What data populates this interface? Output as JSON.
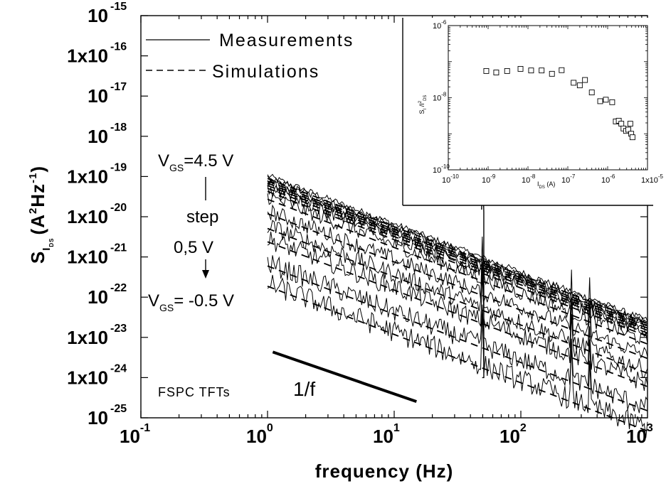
{
  "chart_data": [
    {
      "type": "line",
      "title": "",
      "xlabel": "frequency (Hz)",
      "ylabel": {
        "main": "S",
        "sub": "I",
        "subsub": "DS",
        "unit_open": "(A",
        "unit_sup1": "2",
        "unit_hz": "Hz",
        "unit_sup2": "-1",
        "unit_close": ")"
      },
      "x_scale": "log",
      "y_scale": "log",
      "xlim": [
        0.1,
        1000
      ],
      "ylim": [
        1e-25,
        1e-15
      ],
      "x_ticks": [
        {
          "value": 0.1,
          "base": "10",
          "exp": "-1"
        },
        {
          "value": 1,
          "base": "10",
          "exp": "0"
        },
        {
          "value": 10,
          "base": "10",
          "exp": "1"
        },
        {
          "value": 100,
          "base": "10",
          "exp": "2"
        },
        {
          "value": 1000,
          "base": "10",
          "exp": "3"
        }
      ],
      "y_ticks": [
        {
          "value": 1e-15,
          "base": "10",
          "exp": "-15"
        },
        {
          "value": 1e-16,
          "base": "1x10",
          "exp": "-16"
        },
        {
          "value": 1e-17,
          "base": "10",
          "exp": "-17"
        },
        {
          "value": 1e-18,
          "base": "10",
          "exp": "-18"
        },
        {
          "value": 1e-19,
          "base": "1x10",
          "exp": "-19"
        },
        {
          "value": 1e-20,
          "base": "1x10",
          "exp": "-20"
        },
        {
          "value": 1e-21,
          "base": "1x10",
          "exp": "-21"
        },
        {
          "value": 1e-22,
          "base": "10",
          "exp": "-22"
        },
        {
          "value": 1e-23,
          "base": "1x10",
          "exp": "-23"
        },
        {
          "value": 1e-24,
          "base": "1x10",
          "exp": "-24"
        },
        {
          "value": 1e-25,
          "base": "10",
          "exp": "-25"
        }
      ],
      "legend": {
        "placement": "top-left",
        "entries": [
          {
            "label": "Measurements",
            "style": "solid"
          },
          {
            "label": "Simulations",
            "style": "dashed"
          }
        ]
      },
      "annotations": {
        "vgs_top": {
          "v": "V",
          "sub": "GS",
          "val": "=4.5 V"
        },
        "step_label": "step",
        "step_value": "0,5 V",
        "vgs_bottom": {
          "v": "V",
          "sub": "GS",
          "val": "= -0.5 V"
        },
        "device_label": "FSPC TFTs",
        "slope_label": "1/f"
      },
      "slope_line": {
        "x": [
          1.1,
          15
        ],
        "y": [
          8.5e-25,
          7e-25
        ],
        "note_value_at_end": 6.8e-25
      },
      "curve_family": {
        "x_range": [
          1,
          1000
        ],
        "amplitude_at_1Hz": [
          1.05e-19,
          9e-20,
          8e-20,
          7e-20,
          6e-20,
          5e-20,
          3.2e-20,
          1.4e-20,
          6e-21,
          2.8e-21,
          7e-22,
          2.2e-22
        ],
        "slope_exponent": -1.2,
        "spikes_hz": [
          50,
          250,
          350
        ]
      },
      "grid": false
    },
    {
      "type": "scatter",
      "title": "",
      "xlabel": {
        "main": "I",
        "sub": "DS",
        "rest": " (A)"
      },
      "ylabel": {
        "main": "S",
        "sub": "I",
        "mid": " /I",
        "sup": "2",
        "sub2": "DS"
      },
      "x_scale": "log",
      "y_scale": "log",
      "xlim": [
        1e-10,
        1e-05
      ],
      "ylim": [
        1e-10,
        1e-06
      ],
      "x_ticks": [
        {
          "value": 1e-10,
          "base": "10",
          "exp": "-10"
        },
        {
          "value": 1e-09,
          "base": "10",
          "exp": "-9"
        },
        {
          "value": 1e-08,
          "base": "10",
          "exp": "-8"
        },
        {
          "value": 1e-07,
          "base": "10",
          "exp": "-7"
        },
        {
          "value": 1e-06,
          "base": "10",
          "exp": "-6"
        },
        {
          "value": 1e-05,
          "base": "1x10",
          "exp": "-5"
        }
      ],
      "y_ticks": [
        {
          "value": 1e-06,
          "base": "10",
          "exp": "-6"
        },
        {
          "value": 1e-08,
          "base": "10",
          "exp": "-8"
        },
        {
          "value": 1e-10,
          "base": "10",
          "exp": "-10"
        }
      ],
      "marker": "open-square",
      "points": [
        {
          "x": 9e-10,
          "y": 5.5e-08
        },
        {
          "x": 1.6e-09,
          "y": 5e-08
        },
        {
          "x": 3e-09,
          "y": 5.5e-08
        },
        {
          "x": 6.5e-09,
          "y": 6.3e-08
        },
        {
          "x": 1.2e-08,
          "y": 5.7e-08
        },
        {
          "x": 2.2e-08,
          "y": 5.7e-08
        },
        {
          "x": 4e-08,
          "y": 4.6e-08
        },
        {
          "x": 7e-08,
          "y": 5.8e-08
        },
        {
          "x": 1.4e-07,
          "y": 2.6e-08
        },
        {
          "x": 2e-07,
          "y": 2.2e-08
        },
        {
          "x": 2.7e-07,
          "y": 3.1e-08
        },
        {
          "x": 4e-07,
          "y": 1.4e-08
        },
        {
          "x": 6.5e-07,
          "y": 8e-09
        },
        {
          "x": 9e-07,
          "y": 8.8e-09
        },
        {
          "x": 1.3e-06,
          "y": 7.5e-09
        },
        {
          "x": 1.6e-06,
          "y": 2.2e-09
        },
        {
          "x": 1.9e-06,
          "y": 2.3e-09
        },
        {
          "x": 2.2e-06,
          "y": 1.9e-09
        },
        {
          "x": 2.5e-06,
          "y": 1.4e-09
        },
        {
          "x": 2.9e-06,
          "y": 1.2e-09
        },
        {
          "x": 3.3e-06,
          "y": 1.3e-09
        },
        {
          "x": 3.7e-06,
          "y": 1.9e-09
        },
        {
          "x": 3.9e-06,
          "y": 1e-09
        },
        {
          "x": 4.2e-06,
          "y": 8e-10
        }
      ],
      "grid": false
    }
  ]
}
